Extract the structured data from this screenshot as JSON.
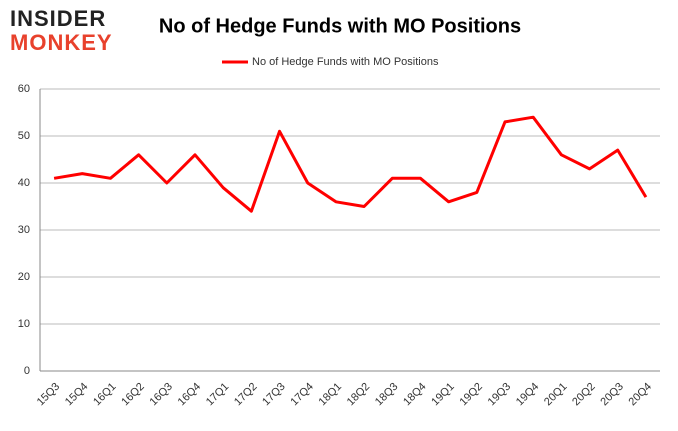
{
  "logo": {
    "line1": "INSIDER",
    "line2": "MONKEY"
  },
  "chart_data": {
    "type": "line",
    "title": "No of Hedge Funds with MO Positions",
    "categories": [
      "15Q3",
      "15Q4",
      "16Q1",
      "16Q2",
      "16Q3",
      "16Q4",
      "17Q1",
      "17Q2",
      "17Q3",
      "17Q4",
      "18Q1",
      "18Q2",
      "18Q3",
      "18Q4",
      "19Q1",
      "19Q2",
      "19Q3",
      "19Q4",
      "20Q1",
      "20Q2",
      "20Q3",
      "20Q4"
    ],
    "series": [
      {
        "name": "No of Hedge Funds with MO Positions",
        "color": "#ff0000",
        "values": [
          41,
          42,
          41,
          46,
          40,
          46,
          39,
          34,
          51,
          40,
          36,
          35,
          41,
          41,
          36,
          38,
          53,
          54,
          46,
          43,
          47,
          37
        ]
      }
    ],
    "ylim": [
      0,
      60
    ],
    "yticks": [
      0,
      10,
      20,
      30,
      40,
      50,
      60
    ],
    "grid": true,
    "legend": "top"
  }
}
